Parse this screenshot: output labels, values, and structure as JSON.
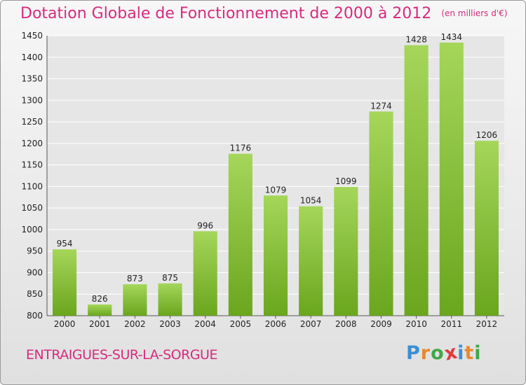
{
  "header": {
    "title": "Dotation Globale de Fonctionnement de 2000 à 2012",
    "unit": "(en milliers d'€)"
  },
  "footer": {
    "commune": "ENTRAIGUES-SUR-LA-SORGUE",
    "logo_letters": [
      "P",
      "r",
      "o",
      "x",
      "i",
      "t",
      "i"
    ],
    "logo_colors": [
      "#3a8fd6",
      "#e8892b",
      "#3fa84a",
      "#e03a3a",
      "#3a8fd6",
      "#e8892b",
      "#3fa84a"
    ]
  },
  "chart_data": {
    "type": "bar",
    "title": "Dotation Globale de Fonctionnement de 2000 à 2012",
    "xlabel": "",
    "ylabel": "",
    "ylim": [
      800,
      1450
    ],
    "yticks": [
      800,
      850,
      900,
      950,
      1000,
      1050,
      1100,
      1150,
      1200,
      1250,
      1300,
      1350,
      1400,
      1450
    ],
    "grid": true,
    "categories": [
      "2000",
      "2001",
      "2002",
      "2003",
      "2004",
      "2005",
      "2006",
      "2007",
      "2008",
      "2009",
      "2010",
      "2011",
      "2012"
    ],
    "values": [
      954,
      826,
      873,
      875,
      996,
      1176,
      1079,
      1054,
      1099,
      1274,
      1428,
      1434,
      1206
    ],
    "colors": {
      "bar_light": "#a5d65a",
      "bar_dark": "#6aa61e",
      "grid": "#ffffff"
    }
  }
}
